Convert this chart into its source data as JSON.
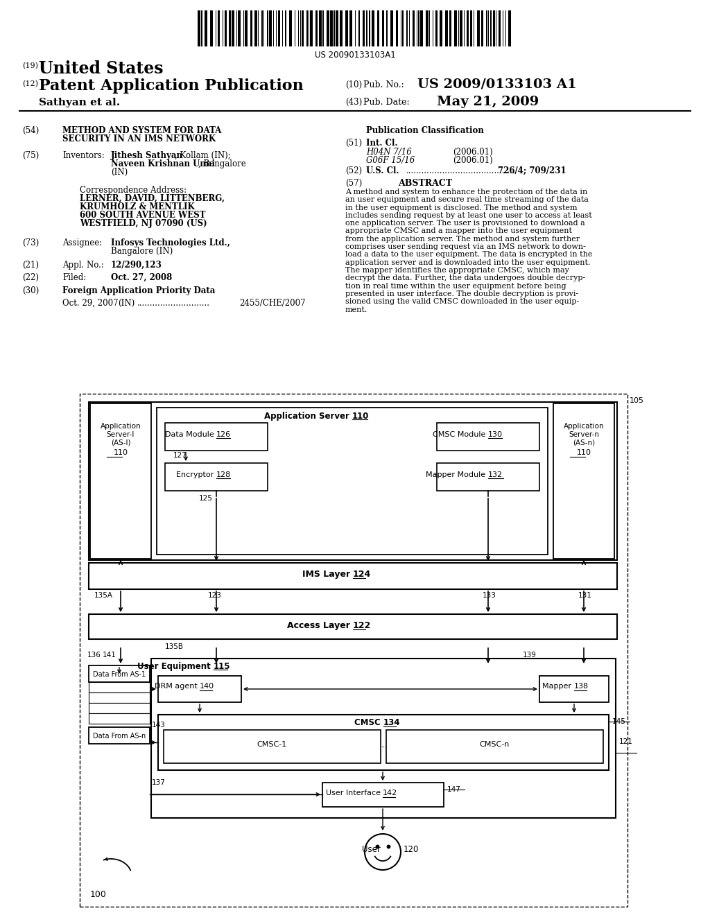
{
  "background_color": "#ffffff",
  "barcode_text": "US 20090133103A1",
  "patent_number": "US 2009/0133103 A1",
  "pub_date": "May 21, 2009",
  "country": "United States",
  "pub_type": "Patent Application Publication",
  "applicant": "Sathyan et al.",
  "title_54": "METHOD AND SYSTEM FOR DATA\nSECURITY IN AN IMS NETWORK",
  "inventor_bold1": "Jithesh Sathyan",
  "inventor_rest1": ", Kollam (IN);",
  "inventor_bold2": "Naveen Krishnan Unni",
  "inventor_rest2": ", Bangalore",
  "inventor_rest3": "(IN)",
  "corr_addr": "Correspondence Address:",
  "corr_bold": "LERNER, DAVID, LITTENBERG,\nKRUMHOLZ & MENTLIK\n600 SOUTH AVENUE WEST\nWESTFIELD, NJ 07090 (US)",
  "assignee_bold": "Infosys Technologies Ltd.,",
  "assignee_rest": "Bangalore (IN)",
  "appl_no": "12/290,123",
  "filed": "Oct. 27, 2008",
  "foreign_priority": "Foreign Application Priority Data",
  "foreign_date": "Oct. 29, 2007",
  "foreign_country": "(IN)",
  "foreign_dots": "............................",
  "foreign_ref": "2455/CHE/2007",
  "pub_class_title": "Publication Classification",
  "int_cl_label": "Int. Cl.",
  "int_cl_1i": "H04N 7/16",
  "int_cl_1d": "(2006.01)",
  "int_cl_2i": "G06F 15/16",
  "int_cl_2d": "(2006.01)",
  "us_cl_label": "U.S. Cl.",
  "us_cl_dots": "..........................................",
  "us_cl_val": "726/4; 709/231",
  "abstract_title": "ABSTRACT",
  "abstract_lines": [
    "A method and system to enhance the protection of the data in",
    "an user equipment and secure real time streaming of the data",
    "in the user equipment is disclosed. The method and system",
    "includes sending request by at least one user to access at least",
    "one application server. The user is provisioned to download a",
    "appropriate CMSC and a mapper into the user equipment",
    "from the application server. The method and system further",
    "comprises user sending request via an IMS network to down-",
    "load a data to the user equipment. The data is encrypted in the",
    "application server and is downloaded into the user equipment.",
    "The mapper identifies the appropriate CMSC, which may",
    "decrypt the data. Further, the data undergoes double decryp-",
    "tion in real time within the user equipment before being",
    "presented in user interface. The double decryption is provi-",
    "sioned using the valid CMSC downloaded in the user equip-",
    "ment."
  ]
}
